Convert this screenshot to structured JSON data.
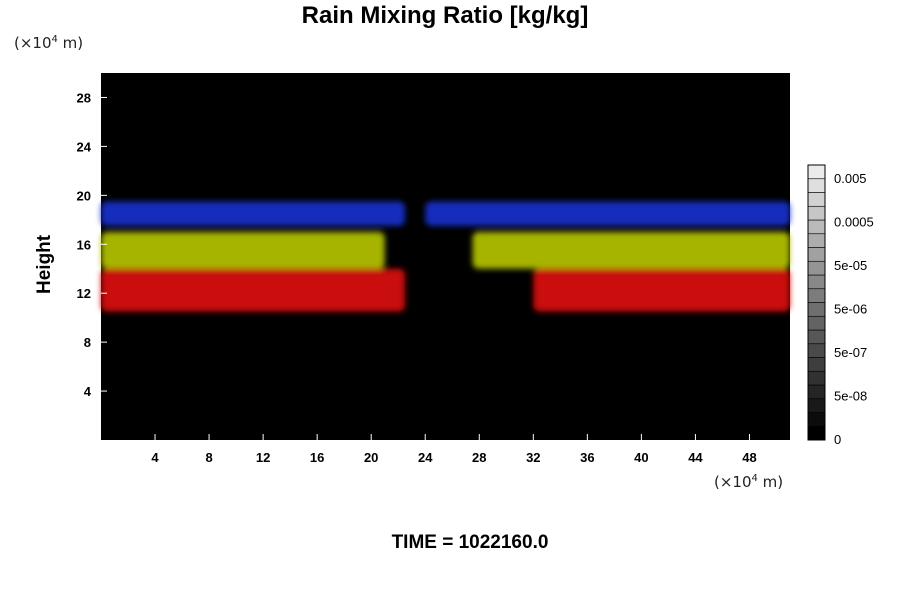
{
  "chart_data": {
    "type": "heatmap",
    "title": "Rain Mixing Ratio [kg/kg]",
    "ylabel": "Height",
    "xunit": {
      "prefix": "(×10",
      "exp": "4",
      "suffix": " m)"
    },
    "yunit": {
      "prefix": "(×10",
      "exp": "4",
      "suffix": " m)"
    },
    "xlim": [
      0,
      51
    ],
    "ylim": [
      0,
      30
    ],
    "x_ticks": [
      4,
      8,
      12,
      16,
      20,
      24,
      28,
      32,
      36,
      40,
      44,
      48
    ],
    "y_ticks": [
      4,
      8,
      12,
      16,
      20,
      24,
      28
    ],
    "colorbar": {
      "labels": [
        "0",
        "5e-08",
        "5e-07",
        "5e-06",
        "5e-05",
        "0.0005",
        "0.005"
      ],
      "levels": 20,
      "colors": {
        "min": "#000000",
        "max": "#ffffff"
      }
    },
    "layers": [
      {
        "color": "#1830d0",
        "y_range": [
          17.5,
          19.5
        ],
        "x_spans": [
          [
            0,
            22.5
          ],
          [
            24,
            51
          ]
        ]
      },
      {
        "color": "#b8c800",
        "y_range": [
          14,
          17
        ],
        "x_spans": [
          [
            0,
            21
          ],
          [
            27.5,
            51
          ]
        ]
      },
      {
        "color": "#e01010",
        "y_range": [
          10.5,
          14
        ],
        "x_spans": [
          [
            0,
            22.5
          ],
          [
            32,
            51
          ]
        ]
      }
    ],
    "grid": false
  },
  "footer": {
    "time": "TIME = 1022160.0"
  }
}
